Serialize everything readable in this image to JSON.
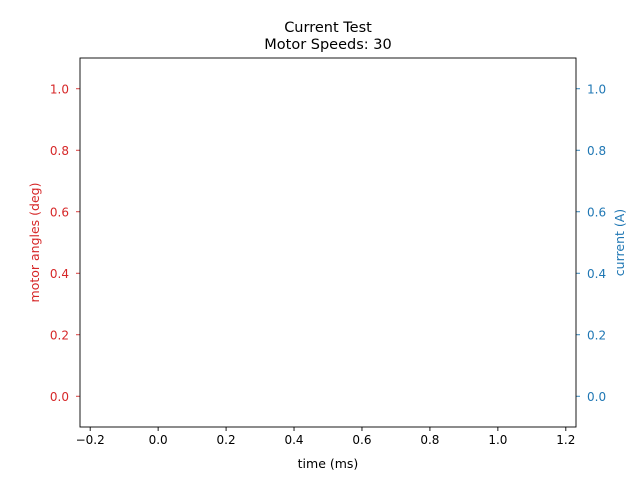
{
  "chart_data": {
    "type": "line",
    "title_line1": "Current Test",
    "title_line2": "Motor Speeds: 30",
    "xlabel": "time (ms)",
    "ylabel_left": "motor angles (deg)",
    "ylabel_right": "current (A)",
    "xlim": [
      -0.23,
      1.23
    ],
    "ylim_left": [
      -0.1,
      1.1
    ],
    "ylim_right": [
      -0.1,
      1.1
    ],
    "xticks": [
      -0.2,
      0.0,
      0.2,
      0.4,
      0.6,
      0.8,
      1.0,
      1.2
    ],
    "xtick_labels": [
      "−0.2",
      "0.0",
      "0.2",
      "0.4",
      "0.6",
      "0.8",
      "1.0",
      "1.2"
    ],
    "yticks_left": [
      0.0,
      0.2,
      0.4,
      0.6,
      0.8,
      1.0
    ],
    "ytick_labels_left": [
      "0.0",
      "0.2",
      "0.4",
      "0.6",
      "0.8",
      "1.0"
    ],
    "yticks_right": [
      0.0,
      0.2,
      0.4,
      0.6,
      0.8,
      1.0
    ],
    "ytick_labels_right": [
      "0.0",
      "0.2",
      "0.4",
      "0.6",
      "0.8",
      "1.0"
    ],
    "series": [],
    "grid": false,
    "colors": {
      "left_axis": "#d62728",
      "right_axis": "#1f77b4",
      "text": "#000000",
      "frame": "#000000"
    }
  }
}
